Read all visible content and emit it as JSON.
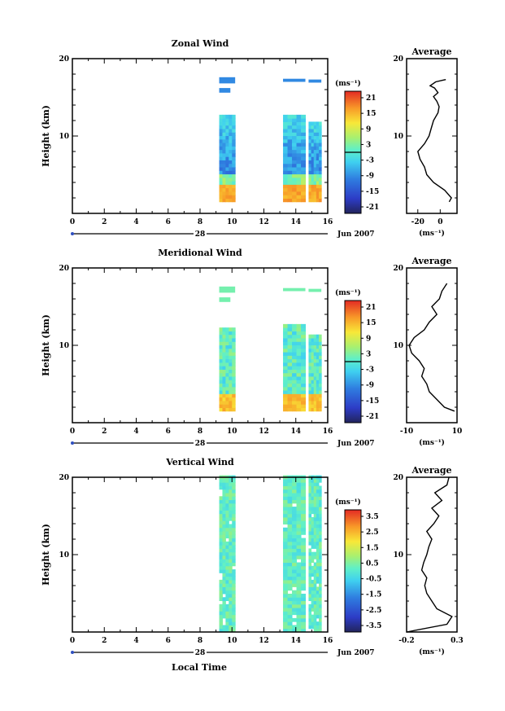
{
  "figure": {
    "x_axis_label": "Local Time",
    "date_label": "Jun 2007",
    "day_label": "28"
  },
  "chart_data": [
    {
      "type": "heatmap",
      "title": "Zonal Wind",
      "ylabel": "Height (km)",
      "xlim": [
        0,
        16
      ],
      "ylim": [
        0,
        20
      ],
      "x_ticks": [
        "0",
        "2",
        "4",
        "6",
        "8",
        "10",
        "12",
        "14",
        "16"
      ],
      "y_ticks": [
        "10",
        "20"
      ],
      "colorbar": {
        "unit_label": "(ms⁻¹)",
        "ticks": [
          "21",
          "15",
          "9",
          "3",
          "-3",
          "-9",
          "-15",
          "-21"
        ],
        "range": [
          -24,
          24
        ],
        "zero_line": 0
      },
      "data_blocks": [
        {
          "t_start": 9.2,
          "t_end": 10.2,
          "h_start": 1.5,
          "h_end": 12.3
        },
        {
          "t_start": 13.2,
          "t_end": 14.6,
          "h_start": 1.5,
          "h_end": 12.5
        },
        {
          "t_start": 14.8,
          "t_end": 15.6,
          "h_start": 1.5,
          "h_end": 11.6
        }
      ],
      "average": {
        "title": "Average",
        "xlim": [
          -30,
          15
        ],
        "ylim": [
          0,
          20
        ],
        "x_ticks": [
          "-20",
          "0"
        ],
        "y_ticks": [
          "10",
          "20"
        ],
        "xlabel": "(ms⁻¹)",
        "profile": [
          [
            8,
            1.5
          ],
          [
            10,
            2
          ],
          [
            4,
            3
          ],
          [
            -6,
            4
          ],
          [
            -12,
            5
          ],
          [
            -14,
            6
          ],
          [
            -18,
            7
          ],
          [
            -20,
            8
          ],
          [
            -14,
            9
          ],
          [
            -10,
            10
          ],
          [
            -8,
            11
          ],
          [
            -6,
            12
          ],
          [
            -2,
            13
          ],
          [
            -1,
            13.8
          ],
          [
            -3,
            14.5
          ],
          [
            -6,
            15.1
          ],
          [
            -2,
            15.6
          ],
          [
            -5,
            16.2
          ],
          [
            -9,
            16.5
          ],
          [
            -4,
            17
          ],
          [
            2,
            17.2
          ],
          [
            5,
            17.3
          ]
        ]
      }
    },
    {
      "type": "heatmap",
      "title": "Meridional Wind",
      "ylabel": "Height (km)",
      "xlim": [
        0,
        16
      ],
      "ylim": [
        0,
        20
      ],
      "x_ticks": [
        "0",
        "2",
        "4",
        "6",
        "8",
        "10",
        "12",
        "14",
        "16"
      ],
      "y_ticks": [
        "10",
        "20"
      ],
      "colorbar": {
        "unit_label": "(ms⁻¹)",
        "ticks": [
          "21",
          "15",
          "9",
          "3",
          "-3",
          "-9",
          "-15",
          "-21"
        ],
        "range": [
          -24,
          24
        ],
        "zero_line": 0
      },
      "data_blocks": [
        {
          "t_start": 9.2,
          "t_end": 10.2,
          "h_start": 1.5,
          "h_end": 12.2
        },
        {
          "t_start": 13.2,
          "t_end": 14.6,
          "h_start": 1.5,
          "h_end": 12.5
        },
        {
          "t_start": 14.8,
          "t_end": 15.6,
          "h_start": 1.5,
          "h_end": 11.3
        }
      ],
      "average": {
        "title": "Average",
        "xlim": [
          -10,
          10
        ],
        "ylim": [
          0,
          20
        ],
        "x_ticks": [
          "-10",
          "10"
        ],
        "y_ticks": [
          "10",
          "20"
        ],
        "xlabel": "(ms⁻¹)",
        "profile": [
          [
            9,
            1.5
          ],
          [
            5,
            2
          ],
          [
            2,
            3
          ],
          [
            -1,
            4
          ],
          [
            -2,
            5
          ],
          [
            -4,
            6
          ],
          [
            -3,
            7
          ],
          [
            -5,
            8
          ],
          [
            -8,
            9
          ],
          [
            -9,
            10
          ],
          [
            -7,
            11
          ],
          [
            -3,
            12
          ],
          [
            -1,
            13
          ],
          [
            2,
            14
          ],
          [
            0,
            15
          ],
          [
            3,
            16
          ],
          [
            4,
            17
          ],
          [
            6,
            18
          ]
        ]
      }
    },
    {
      "type": "heatmap",
      "title": "Vertical Wind",
      "ylabel": "Height (km)",
      "xlim": [
        0,
        16
      ],
      "ylim": [
        0,
        20
      ],
      "x_ticks": [
        "0",
        "2",
        "4",
        "6",
        "8",
        "10",
        "12",
        "14",
        "16"
      ],
      "y_ticks": [
        "10",
        "20"
      ],
      "colorbar": {
        "unit_label": "(ms⁻¹)",
        "ticks": [
          "3.5",
          "2.5",
          "1.5",
          "0.5",
          "-0.5",
          "-1.5",
          "-2.5",
          "-3.5"
        ],
        "range": [
          -4,
          4
        ],
        "zero_line": null
      },
      "data_blocks": [
        {
          "t_start": 9.2,
          "t_end": 10.2,
          "h_start": 0,
          "h_end": 20
        },
        {
          "t_start": 13.2,
          "t_end": 14.6,
          "h_start": 0,
          "h_end": 20
        },
        {
          "t_start": 14.8,
          "t_end": 15.6,
          "h_start": 0,
          "h_end": 20
        }
      ],
      "average": {
        "title": "Average",
        "xlim": [
          -0.2,
          0.3
        ],
        "ylim": [
          0,
          20
        ],
        "x_ticks": [
          "-0.2",
          "0.3"
        ],
        "y_ticks": [
          "10",
          "20"
        ],
        "xlabel": "(ms⁻¹)",
        "profile": [
          [
            -0.2,
            0
          ],
          [
            0.2,
            1
          ],
          [
            0.25,
            2
          ],
          [
            0.1,
            3
          ],
          [
            0.05,
            4
          ],
          [
            0.0,
            5
          ],
          [
            -0.02,
            6
          ],
          [
            0.0,
            7
          ],
          [
            -0.05,
            8
          ],
          [
            -0.03,
            9
          ],
          [
            0.0,
            10
          ],
          [
            0.02,
            11
          ],
          [
            0.05,
            12
          ],
          [
            0.0,
            13
          ],
          [
            0.07,
            14
          ],
          [
            0.12,
            15
          ],
          [
            0.05,
            16
          ],
          [
            0.15,
            17
          ],
          [
            0.08,
            18
          ],
          [
            0.2,
            19
          ],
          [
            0.22,
            20
          ]
        ]
      }
    }
  ]
}
